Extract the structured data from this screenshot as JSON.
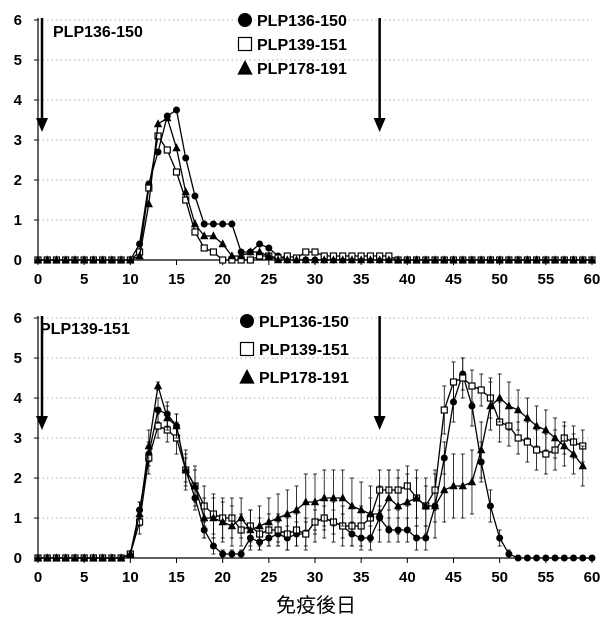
{
  "xlabel": "免疫後日",
  "chart_data": [
    {
      "type": "line",
      "title": "",
      "annotation": "PLP136-150",
      "xlim": [
        0,
        60
      ],
      "ylim": [
        0,
        6
      ],
      "xticks": [
        0,
        5,
        10,
        15,
        20,
        25,
        30,
        35,
        40,
        45,
        50,
        55,
        60
      ],
      "yticks": [
        0,
        1,
        2,
        3,
        4,
        5,
        6
      ],
      "grid": "horizontal dotted",
      "arrows_at_day": [
        0,
        37
      ],
      "legend": [
        {
          "marker": "circle",
          "label": "PLP136-150"
        },
        {
          "marker": "square",
          "label": "PLP139-151"
        },
        {
          "marker": "triangle",
          "label": "PLP178-191"
        }
      ],
      "series": [
        {
          "name": "PLP136-150",
          "marker": "circle",
          "x": [
            0,
            1,
            2,
            3,
            4,
            5,
            6,
            7,
            8,
            9,
            10,
            11,
            12,
            13,
            14,
            15,
            16,
            17,
            18,
            19,
            20,
            21,
            22,
            23,
            24,
            25,
            26,
            27,
            28,
            29,
            30,
            31,
            32,
            33,
            34,
            35,
            36,
            37,
            38,
            39,
            40,
            41,
            42,
            43,
            44,
            45,
            46,
            47,
            48,
            49,
            50,
            51,
            52,
            53,
            54,
            55,
            56,
            57,
            58,
            59,
            60
          ],
          "y": [
            0,
            0,
            0,
            0,
            0,
            0,
            0,
            0,
            0,
            0,
            0,
            0.4,
            1.9,
            2.7,
            3.6,
            3.75,
            2.55,
            1.6,
            0.9,
            0.9,
            0.9,
            0.9,
            0.2,
            0.2,
            0.4,
            0.3,
            0.1,
            0,
            0,
            0,
            0,
            0,
            0,
            0,
            0,
            0,
            0,
            0,
            0,
            0,
            0,
            0,
            0,
            0,
            0,
            0,
            0,
            0,
            0,
            0,
            0,
            0,
            0,
            0,
            0,
            0,
            0,
            0,
            0,
            0,
            0
          ],
          "err": []
        },
        {
          "name": "PLP139-151",
          "marker": "square",
          "x": [
            0,
            1,
            2,
            3,
            4,
            5,
            6,
            7,
            8,
            9,
            10,
            11,
            12,
            13,
            14,
            15,
            16,
            17,
            18,
            19,
            20,
            21,
            22,
            23,
            24,
            25,
            26,
            27,
            28,
            29,
            30,
            31,
            32,
            33,
            34,
            35,
            36,
            37,
            38,
            39,
            40,
            41,
            42,
            43,
            44,
            45,
            46,
            47,
            48,
            49,
            50,
            51,
            52,
            53,
            54,
            55,
            56,
            57,
            58,
            59,
            60
          ],
          "y": [
            0,
            0,
            0,
            0,
            0,
            0,
            0,
            0,
            0,
            0,
            0,
            0.2,
            1.8,
            3.1,
            2.75,
            2.2,
            1.5,
            0.7,
            0.3,
            0.2,
            0,
            0,
            0,
            0,
            0.1,
            0.1,
            0.05,
            0.1,
            0.05,
            0.2,
            0.2,
            0.1,
            0.1,
            0.1,
            0.1,
            0.1,
            0.1,
            0.1,
            0.1,
            0,
            0,
            0,
            0,
            0,
            0,
            0,
            0,
            0,
            0,
            0,
            0,
            0,
            0,
            0,
            0,
            0,
            0,
            0,
            0,
            0,
            0
          ],
          "err": []
        },
        {
          "name": "PLP178-191",
          "marker": "triangle",
          "x": [
            0,
            1,
            2,
            3,
            4,
            5,
            6,
            7,
            8,
            9,
            10,
            11,
            12,
            13,
            14,
            15,
            16,
            17,
            18,
            19,
            20,
            21,
            22,
            23,
            24,
            25,
            26,
            27,
            28,
            29,
            30,
            31,
            32,
            33,
            34,
            35,
            36,
            37,
            38,
            39,
            40,
            41,
            42,
            43,
            44,
            45,
            46,
            47,
            48,
            49,
            50,
            51,
            52,
            53,
            54,
            55,
            56,
            57,
            58,
            59,
            60
          ],
          "y": [
            0,
            0,
            0,
            0,
            0,
            0,
            0,
            0,
            0,
            0,
            0,
            0.1,
            1.4,
            3.4,
            3.55,
            2.8,
            1.7,
            0.9,
            0.6,
            0.6,
            0.4,
            0.1,
            0.1,
            0.2,
            0.2,
            0.1,
            0,
            0,
            0,
            0,
            0,
            0,
            0,
            0,
            0,
            0,
            0,
            0,
            0,
            0,
            0,
            0,
            0,
            0,
            0,
            0,
            0,
            0,
            0,
            0,
            0,
            0,
            0,
            0,
            0,
            0,
            0,
            0,
            0,
            0,
            0
          ],
          "err": []
        }
      ]
    },
    {
      "type": "line",
      "title": "",
      "annotation": "PLP139-151",
      "xlim": [
        0,
        60
      ],
      "ylim": [
        0,
        6
      ],
      "xticks": [
        0,
        5,
        10,
        15,
        20,
        25,
        30,
        35,
        40,
        45,
        50,
        55,
        60
      ],
      "yticks": [
        0,
        1,
        2,
        3,
        4,
        5,
        6
      ],
      "grid": "horizontal dotted",
      "arrows_at_day": [
        0,
        37
      ],
      "legend": [
        {
          "marker": "circle",
          "label": "PLP136-150"
        },
        {
          "marker": "square",
          "label": "PLP139-151"
        },
        {
          "marker": "triangle",
          "label": "PLP178-191"
        }
      ],
      "series": [
        {
          "name": "PLP136-150",
          "marker": "circle",
          "x": [
            0,
            1,
            2,
            3,
            4,
            5,
            6,
            7,
            8,
            9,
            10,
            11,
            12,
            13,
            14,
            15,
            16,
            17,
            18,
            19,
            20,
            21,
            22,
            23,
            24,
            25,
            26,
            27,
            28,
            29,
            30,
            31,
            32,
            33,
            34,
            35,
            36,
            37,
            38,
            39,
            40,
            41,
            42,
            43,
            44,
            45,
            46,
            47,
            48,
            49,
            50,
            51,
            52,
            53,
            54,
            55,
            56,
            57,
            58,
            59,
            60
          ],
          "y": [
            0,
            0,
            0,
            0,
            0,
            0,
            0,
            0,
            0,
            0,
            0.1,
            1.2,
            2.6,
            3.7,
            3.6,
            3.3,
            2.2,
            1.5,
            0.7,
            0.3,
            0.1,
            0.1,
            0.1,
            0.5,
            0.4,
            0.5,
            0.6,
            0.5,
            0.6,
            0.6,
            0.9,
            1.0,
            0.9,
            0.8,
            0.6,
            0.5,
            0.5,
            1.0,
            0.7,
            0.7,
            0.7,
            0.5,
            0.5,
            1.3,
            2.5,
            3.9,
            4.6,
            3.8,
            2.4,
            1.3,
            0.5,
            0.1,
            0,
            0,
            0,
            0,
            0,
            0,
            0,
            0,
            0
          ],
          "err": [
            0,
            0,
            0,
            0,
            0,
            0,
            0,
            0,
            0,
            0,
            0,
            0.2,
            0.3,
            0.3,
            0.3,
            0.3,
            0.3,
            0.3,
            0.2,
            0.2,
            0.1,
            0.1,
            0.1,
            0.2,
            0.2,
            0.2,
            0.3,
            0.3,
            0.3,
            0.3,
            0.3,
            0.3,
            0.3,
            0.3,
            0.3,
            0.3,
            0.3,
            0.3,
            0.3,
            0.3,
            0.3,
            0.3,
            0.3,
            0.4,
            0.4,
            0.5,
            0.4,
            0.5,
            0.5,
            0.4,
            0.2,
            0.1,
            0,
            0,
            0,
            0,
            0,
            0,
            0,
            0,
            0
          ]
        },
        {
          "name": "PLP139-151",
          "marker": "square",
          "x": [
            0,
            1,
            2,
            3,
            4,
            5,
            6,
            7,
            8,
            9,
            10,
            11,
            12,
            13,
            14,
            15,
            16,
            17,
            18,
            19,
            20,
            21,
            22,
            23,
            24,
            25,
            26,
            27,
            28,
            29,
            30,
            31,
            32,
            33,
            34,
            35,
            36,
            37,
            38,
            39,
            40,
            41,
            42,
            43,
            44,
            45,
            46,
            47,
            48,
            49,
            50,
            51,
            52,
            53,
            54,
            55,
            56,
            57,
            58,
            59
          ],
          "y": [
            0,
            0,
            0,
            0,
            0,
            0,
            0,
            0,
            0,
            0,
            0.1,
            0.9,
            2.5,
            3.3,
            3.2,
            3.0,
            2.2,
            1.8,
            1.3,
            1.1,
            1.0,
            1.0,
            0.7,
            0.8,
            0.6,
            0.7,
            0.7,
            0.6,
            0.7,
            0.6,
            0.9,
            1.0,
            0.9,
            0.8,
            0.8,
            0.8,
            1.0,
            1.7,
            1.7,
            1.7,
            1.8,
            1.5,
            1.3,
            1.7,
            3.7,
            4.4,
            4.5,
            4.3,
            4.2,
            4.0,
            3.4,
            3.3,
            3.0,
            2.9,
            2.7,
            2.6,
            2.7,
            3.0,
            2.9,
            2.8
          ],
          "err": [
            0,
            0,
            0,
            0,
            0,
            0,
            0,
            0,
            0,
            0,
            0,
            0.3,
            0.4,
            0.3,
            0.3,
            0.4,
            0.5,
            0.4,
            0.5,
            0.5,
            0.5,
            0.5,
            0.4,
            0.4,
            0.4,
            0.4,
            0.4,
            0.4,
            0.4,
            0.4,
            0.5,
            0.5,
            0.5,
            0.5,
            0.5,
            0.5,
            0.5,
            0.5,
            0.5,
            0.5,
            0.5,
            0.5,
            0.5,
            0.5,
            0.6,
            0.5,
            0.5,
            0.4,
            0.4,
            0.5,
            0.5,
            0.5,
            0.4,
            0.5,
            0.5,
            0.5,
            0.5,
            0.4,
            0.4,
            0.4
          ]
        },
        {
          "name": "PLP178-191",
          "marker": "triangle",
          "x": [
            0,
            1,
            2,
            3,
            4,
            5,
            6,
            7,
            8,
            9,
            10,
            11,
            12,
            13,
            14,
            15,
            16,
            17,
            18,
            19,
            20,
            21,
            22,
            23,
            24,
            25,
            26,
            27,
            28,
            29,
            30,
            31,
            32,
            33,
            34,
            35,
            36,
            37,
            38,
            39,
            40,
            41,
            42,
            43,
            44,
            45,
            46,
            47,
            48,
            49,
            50,
            51,
            52,
            53,
            54,
            55,
            56,
            57,
            58,
            59
          ],
          "y": [
            0,
            0,
            0,
            0,
            0,
            0,
            0,
            0,
            0,
            0,
            0.1,
            1.1,
            2.8,
            4.3,
            3.5,
            3.3,
            2.2,
            1.8,
            1.0,
            1.0,
            0.9,
            0.8,
            1.0,
            0.7,
            0.8,
            0.9,
            1.0,
            1.1,
            1.2,
            1.4,
            1.4,
            1.5,
            1.5,
            1.5,
            1.3,
            1.2,
            1.1,
            1.1,
            1.5,
            1.3,
            1.4,
            1.5,
            1.3,
            1.3,
            1.7,
            1.8,
            1.8,
            1.9,
            2.7,
            3.8,
            4.0,
            3.8,
            3.7,
            3.5,
            3.3,
            3.2,
            3.0,
            2.8,
            2.6,
            2.3
          ],
          "err": [
            0,
            0,
            0,
            0,
            0,
            0,
            0,
            0,
            0,
            0,
            0,
            0.3,
            0.4,
            0.1,
            0.3,
            0.3,
            0.4,
            0.5,
            0.5,
            0.5,
            0.5,
            0.5,
            0.5,
            0.5,
            0.5,
            0.6,
            0.6,
            0.6,
            0.6,
            0.7,
            0.7,
            0.7,
            0.7,
            0.7,
            0.7,
            0.7,
            0.7,
            0.7,
            0.7,
            0.7,
            0.7,
            0.7,
            0.7,
            0.8,
            0.8,
            0.8,
            0.8,
            0.8,
            0.7,
            0.6,
            0.6,
            0.6,
            0.5,
            0.5,
            0.5,
            0.5,
            0.5,
            0.5,
            0.5,
            0.5
          ]
        }
      ]
    }
  ]
}
